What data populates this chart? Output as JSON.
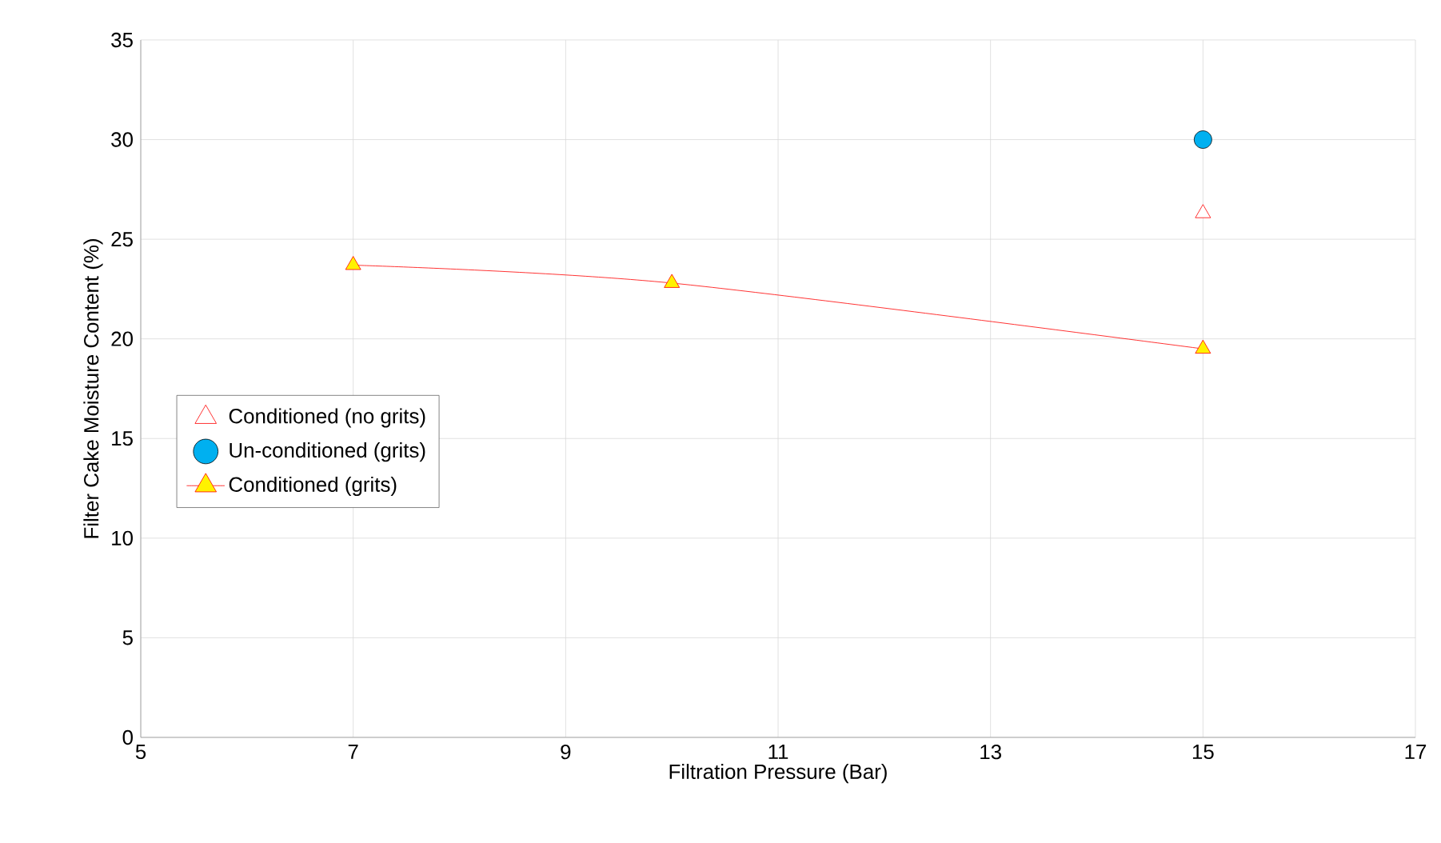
{
  "chart_data": {
    "type": "scatter",
    "xlabel": "Filtration Pressure (Bar)",
    "ylabel": "Filter Cake Moisture Content (%)",
    "xlim": [
      5,
      17
    ],
    "xticks": [
      5,
      7,
      9,
      11,
      13,
      15,
      17
    ],
    "ylim": [
      0,
      35
    ],
    "yticks": [
      0,
      5,
      10,
      15,
      20,
      25,
      30,
      35
    ],
    "grid": true,
    "legend": "left",
    "series": [
      {
        "name": "Conditioned (no grits)",
        "marker": "triangle",
        "color": "#ff0000",
        "x": [
          15
        ],
        "values": [
          26.3
        ]
      },
      {
        "name": "Un-conditioned (grits)",
        "marker": "circle",
        "color": "#00b0f0",
        "x": [
          15
        ],
        "values": [
          30
        ]
      },
      {
        "name": "Conditioned (grits)",
        "type": "line",
        "marker": "triangle",
        "color": "#ff0000",
        "x": [
          7,
          10,
          15
        ],
        "values": [
          23.7,
          22.8,
          19.5
        ]
      }
    ]
  }
}
